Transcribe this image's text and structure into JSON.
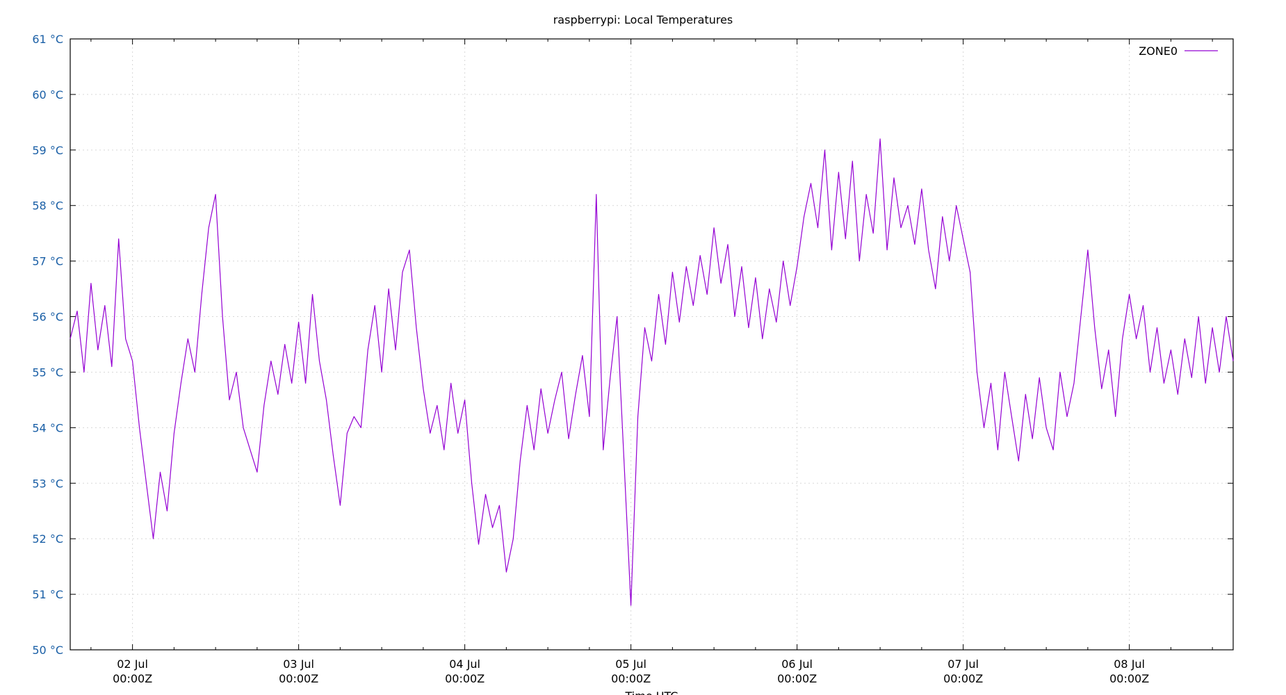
{
  "chart_data": {
    "type": "line",
    "title": "raspberrypi: Local Temperatures",
    "xlabel": "Time UTC",
    "ylabel": "",
    "ylim": [
      50,
      61
    ],
    "xlim": [
      "2025-07-01T15:00Z",
      "2025-07-08T15:00Z"
    ],
    "yticks": [
      {
        "value": 50,
        "label": "50 °C"
      },
      {
        "value": 51,
        "label": "51 °C"
      },
      {
        "value": 52,
        "label": "52 °C"
      },
      {
        "value": 53,
        "label": "53 °C"
      },
      {
        "value": 54,
        "label": "54 °C"
      },
      {
        "value": 55,
        "label": "55 °C"
      },
      {
        "value": 56,
        "label": "56 °C"
      },
      {
        "value": 57,
        "label": "57 °C"
      },
      {
        "value": 58,
        "label": "58 °C"
      },
      {
        "value": 59,
        "label": "59 °C"
      },
      {
        "value": 60,
        "label": "60 °C"
      },
      {
        "value": 61,
        "label": "61 °C"
      }
    ],
    "xticks": [
      {
        "value": "2025-07-02T00:00Z",
        "line1": "02 Jul",
        "line2": "00:00Z"
      },
      {
        "value": "2025-07-03T00:00Z",
        "line1": "03 Jul",
        "line2": "00:00Z"
      },
      {
        "value": "2025-07-04T00:00Z",
        "line1": "04 Jul",
        "line2": "00:00Z"
      },
      {
        "value": "2025-07-05T00:00Z",
        "line1": "05 Jul",
        "line2": "00:00Z"
      },
      {
        "value": "2025-07-06T00:00Z",
        "line1": "06 Jul",
        "line2": "00:00Z"
      },
      {
        "value": "2025-07-07T00:00Z",
        "line1": "07 Jul",
        "line2": "00:00Z"
      },
      {
        "value": "2025-07-08T00:00Z",
        "line1": "08 Jul",
        "line2": "00:00Z"
      }
    ],
    "grid": true,
    "legend": "top-right",
    "series": [
      {
        "name": "ZONE0",
        "color": "#9400d3",
        "points": [
          [
            "2025-07-01T15:00Z",
            55.6
          ],
          [
            "2025-07-01T16:00Z",
            56.1
          ],
          [
            "2025-07-01T17:00Z",
            55.0
          ],
          [
            "2025-07-01T18:00Z",
            56.6
          ],
          [
            "2025-07-01T19:00Z",
            55.4
          ],
          [
            "2025-07-01T20:00Z",
            56.2
          ],
          [
            "2025-07-01T21:00Z",
            55.1
          ],
          [
            "2025-07-01T22:00Z",
            57.4
          ],
          [
            "2025-07-01T23:00Z",
            55.6
          ],
          [
            "2025-07-02T00:00Z",
            55.2
          ],
          [
            "2025-07-02T01:00Z",
            54.0
          ],
          [
            "2025-07-02T02:00Z",
            53.0
          ],
          [
            "2025-07-02T03:00Z",
            52.0
          ],
          [
            "2025-07-02T04:00Z",
            53.2
          ],
          [
            "2025-07-02T05:00Z",
            52.5
          ],
          [
            "2025-07-02T06:00Z",
            53.9
          ],
          [
            "2025-07-02T07:00Z",
            54.8
          ],
          [
            "2025-07-02T08:00Z",
            55.6
          ],
          [
            "2025-07-02T09:00Z",
            55.0
          ],
          [
            "2025-07-02T10:00Z",
            56.4
          ],
          [
            "2025-07-02T11:00Z",
            57.6
          ],
          [
            "2025-07-02T12:00Z",
            58.2
          ],
          [
            "2025-07-02T13:00Z",
            56.0
          ],
          [
            "2025-07-02T14:00Z",
            54.5
          ],
          [
            "2025-07-02T15:00Z",
            55.0
          ],
          [
            "2025-07-02T16:00Z",
            54.0
          ],
          [
            "2025-07-02T17:00Z",
            53.6
          ],
          [
            "2025-07-02T18:00Z",
            53.2
          ],
          [
            "2025-07-02T19:00Z",
            54.4
          ],
          [
            "2025-07-02T20:00Z",
            55.2
          ],
          [
            "2025-07-02T21:00Z",
            54.6
          ],
          [
            "2025-07-02T22:00Z",
            55.5
          ],
          [
            "2025-07-02T23:00Z",
            54.8
          ],
          [
            "2025-07-03T00:00Z",
            55.9
          ],
          [
            "2025-07-03T01:00Z",
            54.8
          ],
          [
            "2025-07-03T02:00Z",
            56.4
          ],
          [
            "2025-07-03T03:00Z",
            55.2
          ],
          [
            "2025-07-03T04:00Z",
            54.5
          ],
          [
            "2025-07-03T05:00Z",
            53.5
          ],
          [
            "2025-07-03T06:00Z",
            52.6
          ],
          [
            "2025-07-03T07:00Z",
            53.9
          ],
          [
            "2025-07-03T08:00Z",
            54.2
          ],
          [
            "2025-07-03T09:00Z",
            54.0
          ],
          [
            "2025-07-03T10:00Z",
            55.4
          ],
          [
            "2025-07-03T11:00Z",
            56.2
          ],
          [
            "2025-07-03T12:00Z",
            55.0
          ],
          [
            "2025-07-03T13:00Z",
            56.5
          ],
          [
            "2025-07-03T14:00Z",
            55.4
          ],
          [
            "2025-07-03T15:00Z",
            56.8
          ],
          [
            "2025-07-03T16:00Z",
            57.2
          ],
          [
            "2025-07-03T17:00Z",
            55.8
          ],
          [
            "2025-07-03T18:00Z",
            54.7
          ],
          [
            "2025-07-03T19:00Z",
            53.9
          ],
          [
            "2025-07-03T20:00Z",
            54.4
          ],
          [
            "2025-07-03T21:00Z",
            53.6
          ],
          [
            "2025-07-03T22:00Z",
            54.8
          ],
          [
            "2025-07-03T23:00Z",
            53.9
          ],
          [
            "2025-07-04T00:00Z",
            54.5
          ],
          [
            "2025-07-04T01:00Z",
            53.0
          ],
          [
            "2025-07-04T02:00Z",
            51.9
          ],
          [
            "2025-07-04T03:00Z",
            52.8
          ],
          [
            "2025-07-04T04:00Z",
            52.2
          ],
          [
            "2025-07-04T05:00Z",
            52.6
          ],
          [
            "2025-07-04T06:00Z",
            51.4
          ],
          [
            "2025-07-04T07:00Z",
            52.0
          ],
          [
            "2025-07-04T08:00Z",
            53.4
          ],
          [
            "2025-07-04T09:00Z",
            54.4
          ],
          [
            "2025-07-04T10:00Z",
            53.6
          ],
          [
            "2025-07-04T11:00Z",
            54.7
          ],
          [
            "2025-07-04T12:00Z",
            53.9
          ],
          [
            "2025-07-04T13:00Z",
            54.5
          ],
          [
            "2025-07-04T14:00Z",
            55.0
          ],
          [
            "2025-07-04T15:00Z",
            53.8
          ],
          [
            "2025-07-04T16:00Z",
            54.6
          ],
          [
            "2025-07-04T17:00Z",
            55.3
          ],
          [
            "2025-07-04T18:00Z",
            54.2
          ],
          [
            "2025-07-04T19:00Z",
            58.2
          ],
          [
            "2025-07-04T20:00Z",
            53.6
          ],
          [
            "2025-07-04T21:00Z",
            54.9
          ],
          [
            "2025-07-04T22:00Z",
            56.0
          ],
          [
            "2025-07-04T23:00Z",
            53.4
          ],
          [
            "2025-07-05T00:00Z",
            50.8
          ],
          [
            "2025-07-05T01:00Z",
            54.2
          ],
          [
            "2025-07-05T02:00Z",
            55.8
          ],
          [
            "2025-07-05T03:00Z",
            55.2
          ],
          [
            "2025-07-05T04:00Z",
            56.4
          ],
          [
            "2025-07-05T05:00Z",
            55.5
          ],
          [
            "2025-07-05T06:00Z",
            56.8
          ],
          [
            "2025-07-05T07:00Z",
            55.9
          ],
          [
            "2025-07-05T08:00Z",
            56.9
          ],
          [
            "2025-07-05T09:00Z",
            56.2
          ],
          [
            "2025-07-05T10:00Z",
            57.1
          ],
          [
            "2025-07-05T11:00Z",
            56.4
          ],
          [
            "2025-07-05T12:00Z",
            57.6
          ],
          [
            "2025-07-05T13:00Z",
            56.6
          ],
          [
            "2025-07-05T14:00Z",
            57.3
          ],
          [
            "2025-07-05T15:00Z",
            56.0
          ],
          [
            "2025-07-05T16:00Z",
            56.9
          ],
          [
            "2025-07-05T17:00Z",
            55.8
          ],
          [
            "2025-07-05T18:00Z",
            56.7
          ],
          [
            "2025-07-05T19:00Z",
            55.6
          ],
          [
            "2025-07-05T20:00Z",
            56.5
          ],
          [
            "2025-07-05T21:00Z",
            55.9
          ],
          [
            "2025-07-05T22:00Z",
            57.0
          ],
          [
            "2025-07-05T23:00Z",
            56.2
          ],
          [
            "2025-07-06T00:00Z",
            56.9
          ],
          [
            "2025-07-06T01:00Z",
            57.8
          ],
          [
            "2025-07-06T02:00Z",
            58.4
          ],
          [
            "2025-07-06T03:00Z",
            57.6
          ],
          [
            "2025-07-06T04:00Z",
            59.0
          ],
          [
            "2025-07-06T05:00Z",
            57.2
          ],
          [
            "2025-07-06T06:00Z",
            58.6
          ],
          [
            "2025-07-06T07:00Z",
            57.4
          ],
          [
            "2025-07-06T08:00Z",
            58.8
          ],
          [
            "2025-07-06T09:00Z",
            57.0
          ],
          [
            "2025-07-06T10:00Z",
            58.2
          ],
          [
            "2025-07-06T11:00Z",
            57.5
          ],
          [
            "2025-07-06T12:00Z",
            59.2
          ],
          [
            "2025-07-06T13:00Z",
            57.2
          ],
          [
            "2025-07-06T14:00Z",
            58.5
          ],
          [
            "2025-07-06T15:00Z",
            57.6
          ],
          [
            "2025-07-06T16:00Z",
            58.0
          ],
          [
            "2025-07-06T17:00Z",
            57.3
          ],
          [
            "2025-07-06T18:00Z",
            58.3
          ],
          [
            "2025-07-06T19:00Z",
            57.2
          ],
          [
            "2025-07-06T20:00Z",
            56.5
          ],
          [
            "2025-07-06T21:00Z",
            57.8
          ],
          [
            "2025-07-06T22:00Z",
            57.0
          ],
          [
            "2025-07-06T23:00Z",
            58.0
          ],
          [
            "2025-07-07T00:00Z",
            57.4
          ],
          [
            "2025-07-07T01:00Z",
            56.8
          ],
          [
            "2025-07-07T02:00Z",
            55.0
          ],
          [
            "2025-07-07T03:00Z",
            54.0
          ],
          [
            "2025-07-07T04:00Z",
            54.8
          ],
          [
            "2025-07-07T05:00Z",
            53.6
          ],
          [
            "2025-07-07T06:00Z",
            55.0
          ],
          [
            "2025-07-07T07:00Z",
            54.2
          ],
          [
            "2025-07-07T08:00Z",
            53.4
          ],
          [
            "2025-07-07T09:00Z",
            54.6
          ],
          [
            "2025-07-07T10:00Z",
            53.8
          ],
          [
            "2025-07-07T11:00Z",
            54.9
          ],
          [
            "2025-07-07T12:00Z",
            54.0
          ],
          [
            "2025-07-07T13:00Z",
            53.6
          ],
          [
            "2025-07-07T14:00Z",
            55.0
          ],
          [
            "2025-07-07T15:00Z",
            54.2
          ],
          [
            "2025-07-07T16:00Z",
            54.8
          ],
          [
            "2025-07-07T17:00Z",
            56.0
          ],
          [
            "2025-07-07T18:00Z",
            57.2
          ],
          [
            "2025-07-07T19:00Z",
            55.8
          ],
          [
            "2025-07-07T20:00Z",
            54.7
          ],
          [
            "2025-07-07T21:00Z",
            55.4
          ],
          [
            "2025-07-07T22:00Z",
            54.2
          ],
          [
            "2025-07-07T23:00Z",
            55.6
          ],
          [
            "2025-07-08T00:00Z",
            56.4
          ],
          [
            "2025-07-08T01:00Z",
            55.6
          ],
          [
            "2025-07-08T02:00Z",
            56.2
          ],
          [
            "2025-07-08T03:00Z",
            55.0
          ],
          [
            "2025-07-08T04:00Z",
            55.8
          ],
          [
            "2025-07-08T05:00Z",
            54.8
          ],
          [
            "2025-07-08T06:00Z",
            55.4
          ],
          [
            "2025-07-08T07:00Z",
            54.6
          ],
          [
            "2025-07-08T08:00Z",
            55.6
          ],
          [
            "2025-07-08T09:00Z",
            54.9
          ],
          [
            "2025-07-08T10:00Z",
            56.0
          ],
          [
            "2025-07-08T11:00Z",
            54.8
          ],
          [
            "2025-07-08T12:00Z",
            55.8
          ],
          [
            "2025-07-08T13:00Z",
            55.0
          ],
          [
            "2025-07-08T14:00Z",
            56.0
          ],
          [
            "2025-07-08T15:00Z",
            55.2
          ]
        ]
      }
    ]
  }
}
